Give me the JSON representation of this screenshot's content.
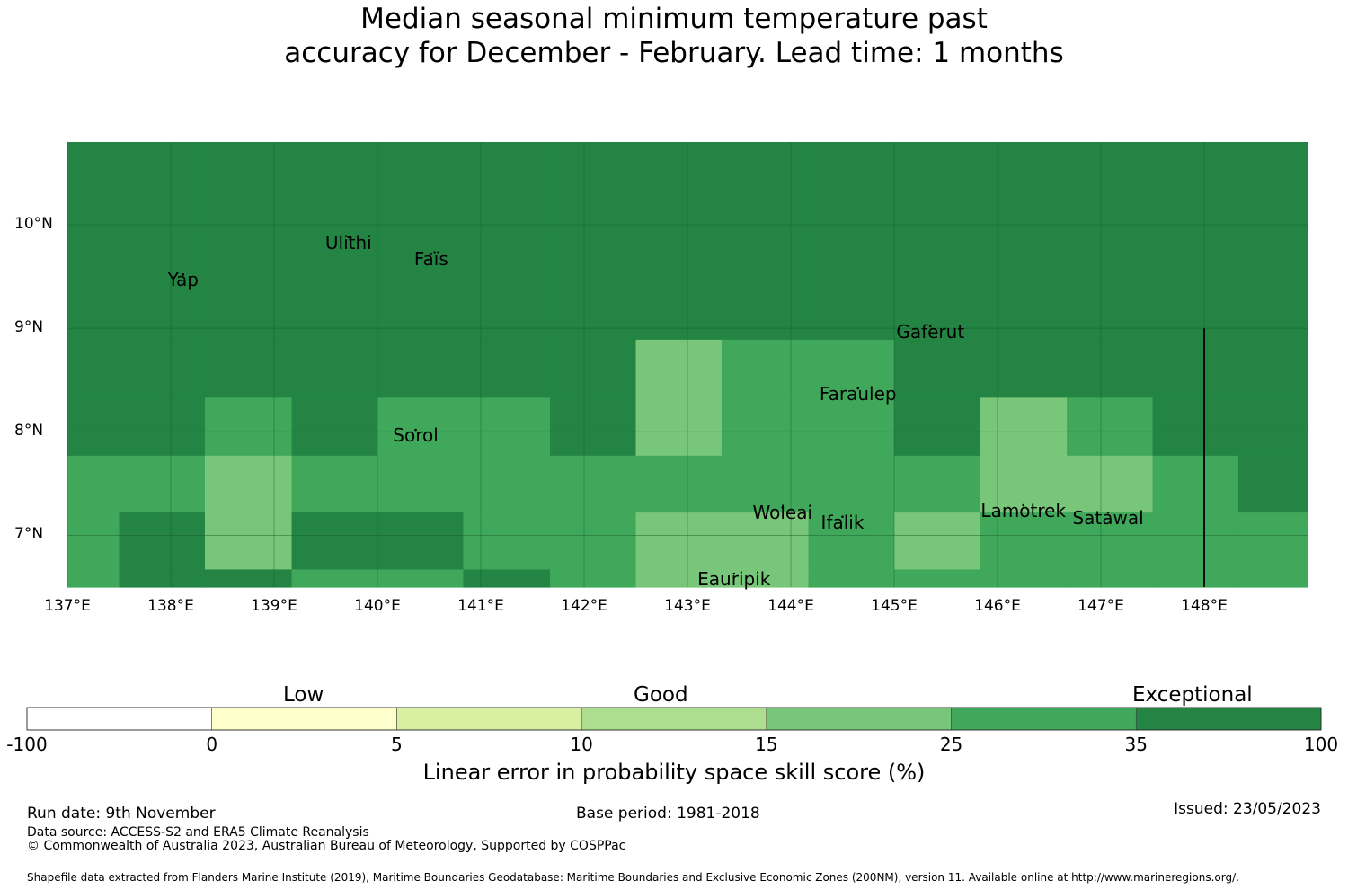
{
  "title": {
    "line1": "Median seasonal minimum temperature past",
    "line2": "accuracy for December - February. Lead time: 1 months"
  },
  "colors": {
    "exceptional": "#238443",
    "c25_35": "#3fa85a",
    "c15_25": "#78c679",
    "c10_15": "#addd8e",
    "c5_10": "#d9f0a3",
    "c0_5": "#ffffcc",
    "below0": "#ffffff"
  },
  "map": {
    "lon_min": 137.0,
    "lon_max": 149.0,
    "lat_min": 6.5,
    "lat_max": 10.8,
    "lon_ticks": [
      137,
      138,
      139,
      140,
      141,
      142,
      143,
      144,
      145,
      146,
      147,
      148
    ],
    "lat_ticks": [
      7,
      8,
      9,
      10
    ],
    "lon_tick_labels": [
      "137°E",
      "138°E",
      "139°E",
      "140°E",
      "141°E",
      "142°E",
      "143°E",
      "144°E",
      "145°E",
      "146°E",
      "147°E",
      "148°E"
    ],
    "lat_tick_labels": [
      "7°N",
      "8°N",
      "9°N",
      "10°N"
    ],
    "grid_cols": [
      137.0,
      137.5,
      138.33,
      139.17,
      140.0,
      140.83,
      141.67,
      142.5,
      143.33,
      144.17,
      145.0,
      145.83,
      146.67,
      147.5,
      148.33,
      149.0
    ],
    "grid_rows": [
      10.8,
      8.89,
      8.33,
      7.77,
      7.22,
      6.67,
      6.5
    ],
    "skill_classes": [
      [
        "exceptional",
        "exceptional",
        "exceptional",
        "exceptional",
        "exceptional",
        "exceptional",
        "exceptional",
        "exceptional",
        "exceptional",
        "exceptional",
        "exceptional",
        "exceptional",
        "exceptional",
        "exceptional",
        "exceptional"
      ],
      [
        "exceptional",
        "exceptional",
        "exceptional",
        "exceptional",
        "exceptional",
        "exceptional",
        "exceptional",
        "c15_25",
        "c25_35",
        "c25_35",
        "exceptional",
        "exceptional",
        "exceptional",
        "exceptional",
        "exceptional"
      ],
      [
        "exceptional",
        "exceptional",
        "c25_35",
        "exceptional",
        "c25_35",
        "c25_35",
        "exceptional",
        "c15_25",
        "c25_35",
        "c25_35",
        "exceptional",
        "c15_25",
        "c25_35",
        "exceptional",
        "exceptional"
      ],
      [
        "c25_35",
        "c25_35",
        "c15_25",
        "c25_35",
        "c25_35",
        "c25_35",
        "c25_35",
        "c25_35",
        "c25_35",
        "c25_35",
        "c25_35",
        "c15_25",
        "c15_25",
        "c25_35",
        "exceptional"
      ],
      [
        "c25_35",
        "exceptional",
        "c15_25",
        "exceptional",
        "exceptional",
        "c25_35",
        "c25_35",
        "c15_25",
        "c15_25",
        "c25_35",
        "c15_25",
        "c25_35",
        "c25_35",
        "c25_35",
        "c25_35"
      ],
      [
        "c25_35",
        "exceptional",
        "exceptional",
        "c25_35",
        "c25_35",
        "exceptional",
        "c25_35",
        "c15_25",
        "c15_25",
        "c25_35",
        "c25_35",
        "c25_35",
        "c25_35",
        "c25_35",
        "c25_35"
      ]
    ],
    "boundary_line": {
      "lon": 148.0,
      "lat_from": 6.5,
      "lat_to": 9.0
    },
    "islands": [
      {
        "name": "Yap",
        "lon": 138.12,
        "lat": 9.52
      },
      {
        "name": "Ulithi",
        "lon": 139.72,
        "lat": 9.88
      },
      {
        "name": "Faïs",
        "lon": 140.52,
        "lat": 9.72
      },
      {
        "name": "Gaferut",
        "lon": 145.35,
        "lat": 9.02
      },
      {
        "name": "Faraulep",
        "lon": 144.65,
        "lat": 8.42
      },
      {
        "name": "Sorol",
        "lon": 140.37,
        "lat": 8.02
      },
      {
        "name": "Woleai",
        "lon": 143.92,
        "lat": 7.27
      },
      {
        "name": "Ifalik",
        "lon": 144.5,
        "lat": 7.18
      },
      {
        "name": "Lamotrek",
        "lon": 146.25,
        "lat": 7.29
      },
      {
        "name": "Satawal",
        "lon": 147.07,
        "lat": 7.22
      },
      {
        "name": "Eauripik",
        "lon": 143.45,
        "lat": 6.63
      }
    ]
  },
  "colorbar": {
    "categories": [
      "Low",
      "Good",
      "Exceptional"
    ],
    "tick_labels": [
      "-100",
      "0",
      "5",
      "10",
      "15",
      "25",
      "35",
      "100"
    ],
    "segments": [
      "below0",
      "c0_5",
      "c5_10",
      "c10_15",
      "c15_25",
      "c25_35",
      "exceptional"
    ],
    "title": "Linear error in probability space skill score (%)"
  },
  "footer": {
    "run_date": "Run date: 9th November",
    "base_period": "Base period: 1981-2018",
    "issued": "Issued: 23/05/2023",
    "data_source": "Data source: ACCESS-S2 and ERA5 Climate Reanalysis",
    "copyright": "© Commonwealth of Australia 2023, Australian Bureau of Meteorology, Supported by COSPPac",
    "shapefile": "Shapefile data extracted from Flanders Marine Institute (2019), Maritime Boundaries Geodatabase: Maritime Boundaries and Exclusive Economic Zones (200NM), version 11. Available online at http://www.marineregions.org/."
  }
}
